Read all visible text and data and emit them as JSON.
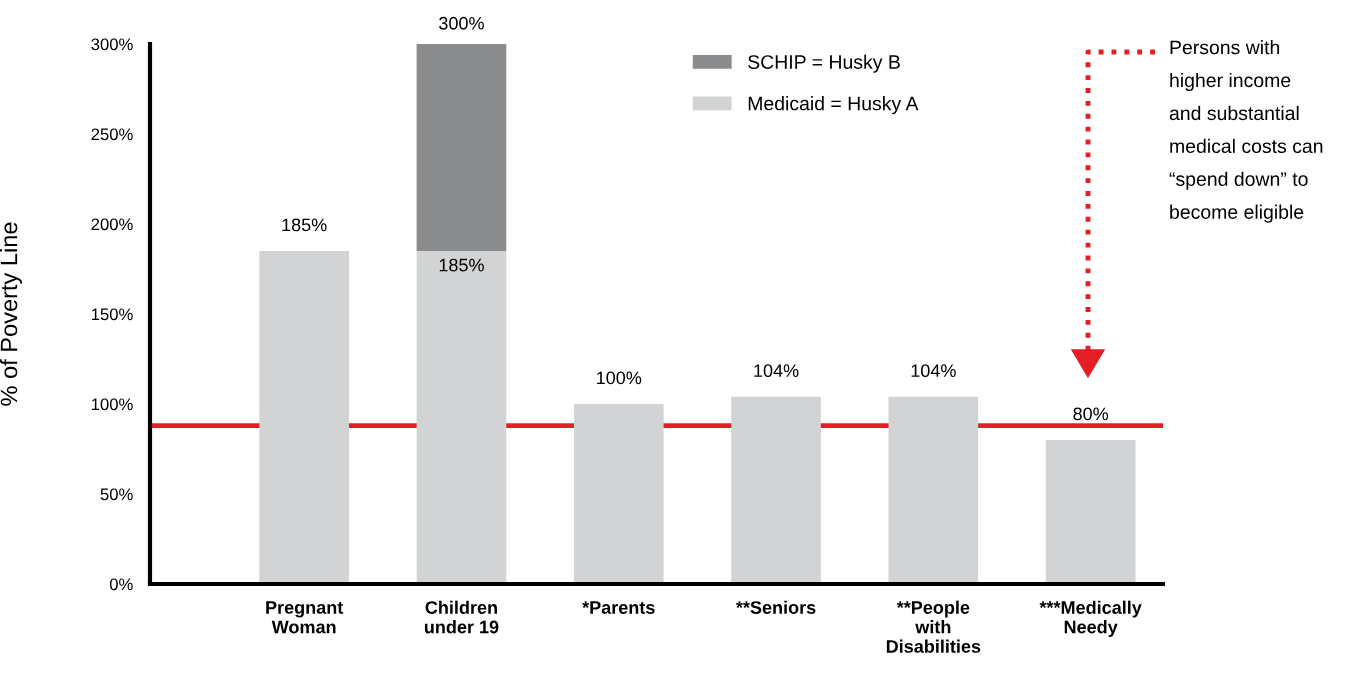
{
  "chart_data": {
    "type": "bar",
    "ylabel": "% of Poverty Line",
    "categories": [
      "Pregnant\nWoman",
      "Children\nunder 19",
      "*Parents",
      "**Seniors",
      "**People\nwith\nDisabilities",
      "***Medically\nNeedy"
    ],
    "stacked": true,
    "series": [
      {
        "name": "Medicaid = Husky A",
        "color": "#d1d3d4",
        "values": [
          185,
          185,
          100,
          104,
          104,
          80
        ],
        "value_labels": [
          "185%",
          "185%",
          "100%",
          "104%",
          "104%",
          "80%"
        ]
      },
      {
        "name": "SCHIP = Husky B",
        "color": "#8a8b8c",
        "values": [
          null,
          115,
          null,
          null,
          null,
          null
        ]
      }
    ],
    "totals": [
      null,
      "300%",
      null,
      null,
      null,
      null
    ],
    "ylim": [
      0,
      300
    ],
    "yticks": [
      {
        "value": 0,
        "label": "0%"
      },
      {
        "value": 50,
        "label": "50%"
      },
      {
        "value": 100,
        "label": "100%"
      },
      {
        "value": 150,
        "label": "150%"
      },
      {
        "value": 200,
        "label": "200%"
      },
      {
        "value": 250,
        "label": "250%"
      },
      {
        "value": 300,
        "label": "300%"
      }
    ],
    "ref_lines": [
      {
        "axis": "y",
        "value": 88,
        "color": "#e31e24"
      }
    ],
    "annotations": [
      "Persons with\nhigher income\nand substantial\nmedical costs can\n“spend down” to\nbecome eligible"
    ],
    "grid": false,
    "legend": "top"
  }
}
